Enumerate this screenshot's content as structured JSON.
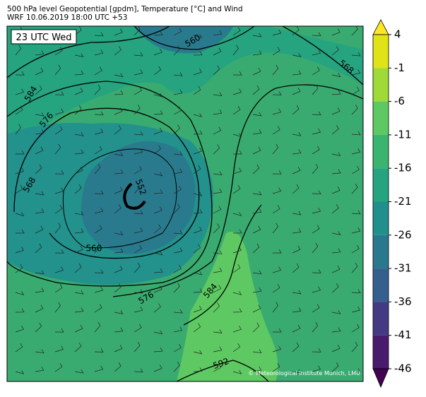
{
  "header": {
    "title": "500 hPa level Geopotential [gpdm], Temperature [°C] and Wind",
    "subtitle": "WRF 10.06.2019 18:00 UTC +53"
  },
  "map": {
    "time_label": "23 UTC Wed",
    "contour_labels": [
      "584",
      "576",
      "568",
      "560",
      "568",
      "552",
      "560",
      "576",
      "584",
      "592"
    ],
    "copyright": "© Meteorological Institute Munich, LMU"
  },
  "colorbar": {
    "ticks": [
      4,
      -1,
      -6,
      -11,
      -16,
      -21,
      -26,
      -31,
      -36,
      -41,
      -46
    ],
    "colors": [
      "#fde725",
      "#dfe318",
      "#a0da39",
      "#5ec962",
      "#3bb46f",
      "#26a47f",
      "#21908d",
      "#2a788e",
      "#355f8d",
      "#443983",
      "#481b6d",
      "#440154"
    ]
  }
}
